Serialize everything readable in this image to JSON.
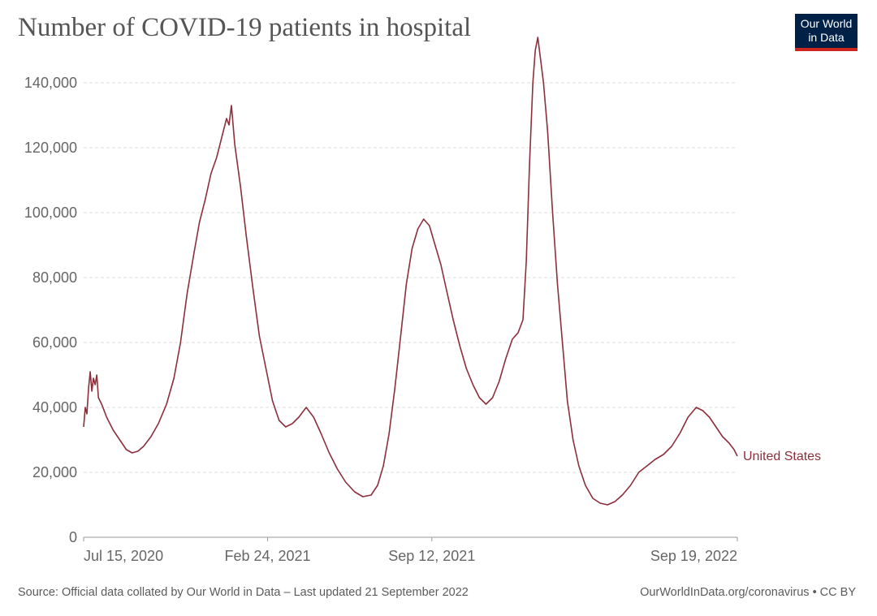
{
  "header": {
    "title": "Number of COVID-19 patients in hospital",
    "logo_line1": "Our World",
    "logo_line2": "in Data"
  },
  "footer": {
    "source": "Official data collated by Our World in Data – Last updated 21 September 2022",
    "source_prefix": "Source: ",
    "credit": "OurWorldInData.org/coronavirus • CC BY"
  },
  "colors": {
    "series": "#8c2f3b",
    "logo_bg": "#002147",
    "logo_accent": "#ce261e"
  },
  "chart_data": {
    "type": "line",
    "title": "Number of COVID-19 patients in hospital",
    "xlabel": "",
    "ylabel": "",
    "ylim": [
      0,
      150000
    ],
    "yticks": [
      0,
      20000,
      40000,
      60000,
      80000,
      100000,
      120000,
      140000
    ],
    "ytick_labels": [
      "0",
      "20,000",
      "40,000",
      "60,000",
      "80,000",
      "100,000",
      "120,000",
      "140,000"
    ],
    "xlim": [
      "2020-07-15",
      "2022-09-19"
    ],
    "xticks": [
      "2020-07-15",
      "2021-02-24",
      "2021-09-12",
      "2022-09-19"
    ],
    "xtick_labels": [
      "Jul 15, 2020",
      "Feb 24, 2021",
      "Sep 12, 2021",
      "Sep 19, 2022"
    ],
    "grid": "horizontal dashed",
    "series": [
      {
        "name": "United States",
        "points": [
          [
            "2020-07-15",
            34000
          ],
          [
            "2020-07-17",
            40000
          ],
          [
            "2020-07-19",
            38000
          ],
          [
            "2020-07-21",
            46000
          ],
          [
            "2020-07-23",
            51000
          ],
          [
            "2020-07-25",
            45000
          ],
          [
            "2020-07-27",
            49000
          ],
          [
            "2020-07-29",
            47000
          ],
          [
            "2020-07-31",
            50000
          ],
          [
            "2020-08-02",
            43000
          ],
          [
            "2020-08-06",
            41000
          ],
          [
            "2020-08-12",
            37000
          ],
          [
            "2020-08-20",
            33000
          ],
          [
            "2020-08-28",
            30000
          ],
          [
            "2020-09-05",
            27000
          ],
          [
            "2020-09-12",
            26000
          ],
          [
            "2020-09-19",
            26500
          ],
          [
            "2020-09-26",
            28000
          ],
          [
            "2020-10-05",
            31000
          ],
          [
            "2020-10-14",
            35000
          ],
          [
            "2020-10-24",
            41000
          ],
          [
            "2020-11-02",
            49000
          ],
          [
            "2020-11-10",
            60000
          ],
          [
            "2020-11-18",
            75000
          ],
          [
            "2020-11-26",
            87000
          ],
          [
            "2020-12-03",
            97000
          ],
          [
            "2020-12-10",
            104000
          ],
          [
            "2020-12-17",
            112000
          ],
          [
            "2020-12-24",
            117000
          ],
          [
            "2020-12-31",
            124000
          ],
          [
            "2021-01-05",
            129000
          ],
          [
            "2021-01-08",
            127000
          ],
          [
            "2021-01-11",
            133000
          ],
          [
            "2021-01-15",
            121000
          ],
          [
            "2021-01-22",
            108000
          ],
          [
            "2021-01-29",
            93000
          ],
          [
            "2021-02-06",
            77000
          ],
          [
            "2021-02-14",
            62000
          ],
          [
            "2021-02-22",
            52000
          ],
          [
            "2021-03-02",
            42000
          ],
          [
            "2021-03-10",
            36000
          ],
          [
            "2021-03-18",
            34000
          ],
          [
            "2021-03-26",
            35000
          ],
          [
            "2021-04-03",
            37000
          ],
          [
            "2021-04-12",
            40000
          ],
          [
            "2021-04-21",
            37000
          ],
          [
            "2021-04-30",
            32000
          ],
          [
            "2021-05-10",
            26000
          ],
          [
            "2021-05-20",
            21000
          ],
          [
            "2021-05-30",
            17000
          ],
          [
            "2021-06-10",
            14000
          ],
          [
            "2021-06-20",
            12500
          ],
          [
            "2021-06-30",
            13000
          ],
          [
            "2021-07-08",
            16000
          ],
          [
            "2021-07-15",
            22000
          ],
          [
            "2021-07-22",
            32000
          ],
          [
            "2021-07-29",
            46000
          ],
          [
            "2021-08-05",
            62000
          ],
          [
            "2021-08-12",
            78000
          ],
          [
            "2021-08-19",
            89000
          ],
          [
            "2021-08-26",
            95000
          ],
          [
            "2021-09-02",
            98000
          ],
          [
            "2021-09-09",
            96000
          ],
          [
            "2021-09-16",
            90000
          ],
          [
            "2021-09-23",
            84000
          ],
          [
            "2021-09-30",
            76000
          ],
          [
            "2021-10-08",
            67000
          ],
          [
            "2021-10-16",
            59000
          ],
          [
            "2021-10-24",
            52000
          ],
          [
            "2021-11-01",
            47000
          ],
          [
            "2021-11-09",
            43000
          ],
          [
            "2021-11-17",
            41000
          ],
          [
            "2021-11-25",
            43000
          ],
          [
            "2021-12-03",
            48000
          ],
          [
            "2021-12-11",
            55000
          ],
          [
            "2021-12-19",
            61000
          ],
          [
            "2021-12-26",
            63000
          ],
          [
            "2022-01-01",
            67000
          ],
          [
            "2022-01-05",
            85000
          ],
          [
            "2022-01-09",
            115000
          ],
          [
            "2022-01-13",
            140000
          ],
          [
            "2022-01-16",
            150000
          ],
          [
            "2022-01-19",
            154000
          ],
          [
            "2022-01-22",
            148000
          ],
          [
            "2022-01-26",
            140000
          ],
          [
            "2022-01-31",
            125000
          ],
          [
            "2022-02-06",
            100000
          ],
          [
            "2022-02-12",
            78000
          ],
          [
            "2022-02-18",
            60000
          ],
          [
            "2022-02-24",
            42000
          ],
          [
            "2022-03-03",
            30000
          ],
          [
            "2022-03-10",
            22000
          ],
          [
            "2022-03-18",
            16000
          ],
          [
            "2022-03-27",
            12000
          ],
          [
            "2022-04-05",
            10500
          ],
          [
            "2022-04-14",
            10000
          ],
          [
            "2022-04-23",
            11000
          ],
          [
            "2022-05-02",
            13000
          ],
          [
            "2022-05-12",
            16000
          ],
          [
            "2022-05-22",
            20000
          ],
          [
            "2022-06-01",
            22000
          ],
          [
            "2022-06-11",
            24000
          ],
          [
            "2022-06-21",
            25500
          ],
          [
            "2022-07-01",
            28000
          ],
          [
            "2022-07-11",
            32000
          ],
          [
            "2022-07-21",
            37000
          ],
          [
            "2022-07-31",
            40000
          ],
          [
            "2022-08-08",
            39000
          ],
          [
            "2022-08-16",
            37000
          ],
          [
            "2022-08-24",
            34000
          ],
          [
            "2022-09-01",
            31000
          ],
          [
            "2022-09-09",
            29000
          ],
          [
            "2022-09-15",
            27000
          ],
          [
            "2022-09-19",
            25000
          ]
        ]
      }
    ]
  }
}
